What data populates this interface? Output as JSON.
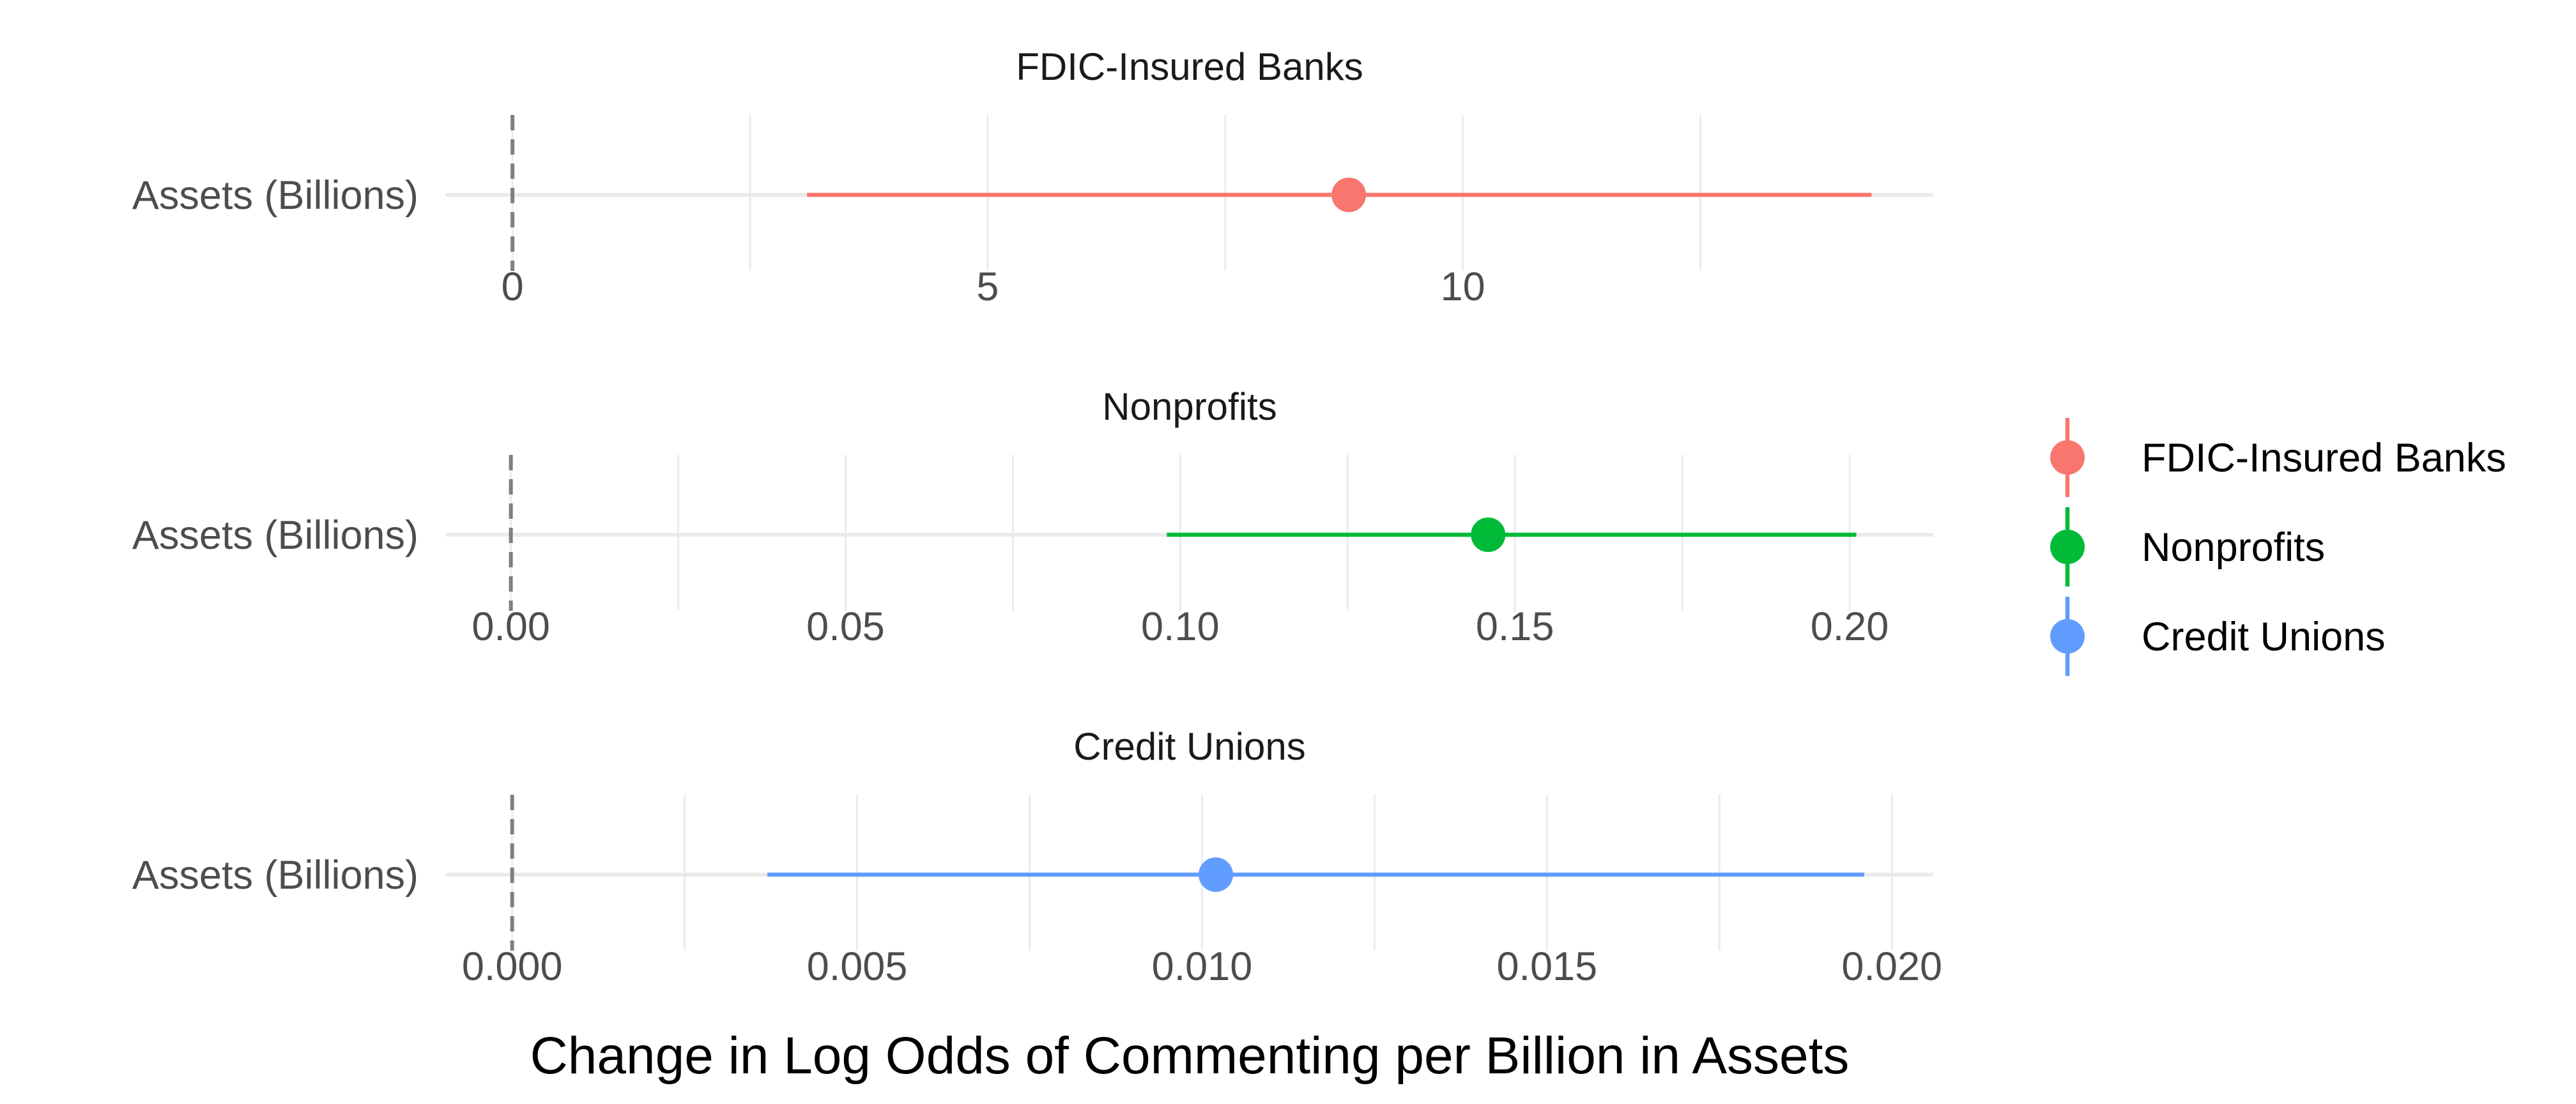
{
  "chart_data": {
    "type": "scatter",
    "style": "point-range (coefficient with confidence interval)",
    "xlabel": "Change in Log Odds of Commenting per Billion in Assets",
    "reference_line": {
      "x": 0,
      "style": "dashed",
      "color": "#7f7f7f"
    },
    "grid": true,
    "legend": {
      "position": "right",
      "entries": [
        {
          "label": "FDIC-Insured Banks",
          "color": "#F8766D"
        },
        {
          "label": "Nonprofits",
          "color": "#00BA38"
        },
        {
          "label": "Credit Unions",
          "color": "#619CFF"
        }
      ]
    },
    "panels": [
      {
        "title": "FDIC-Insured Banks",
        "category": "Assets (Billions)",
        "color": "#F8766D",
        "estimate": 8.8,
        "ci_low": 3.1,
        "ci_high": 14.3,
        "xlim": [
          -0.7,
          14.95
        ],
        "ticks": [
          0,
          5,
          10
        ],
        "tick_labels": [
          "0",
          "5",
          "10"
        ],
        "minor_grid": [
          2.5,
          7.5,
          12.5
        ]
      },
      {
        "title": "Nonprofits",
        "category": "Assets (Billions)",
        "color": "#00BA38",
        "estimate": 0.146,
        "ci_low": 0.098,
        "ci_high": 0.201,
        "xlim": [
          -0.0097,
          0.2125
        ],
        "ticks": [
          0.0,
          0.05,
          0.1,
          0.15,
          0.2
        ],
        "tick_labels": [
          "0.00",
          "0.05",
          "0.10",
          "0.15",
          "0.20"
        ],
        "minor_grid": [
          0.025,
          0.075,
          0.125,
          0.175
        ]
      },
      {
        "title": "Credit Unions",
        "category": "Assets (Billions)",
        "color": "#619CFF",
        "estimate": 0.0102,
        "ci_low": 0.0037,
        "ci_high": 0.0196,
        "xlim": [
          -0.00096,
          0.0206
        ],
        "ticks": [
          0.0,
          0.005,
          0.01,
          0.015,
          0.02
        ],
        "tick_labels": [
          "0.000",
          "0.005",
          "0.010",
          "0.015",
          "0.020"
        ],
        "minor_grid": [
          0.0025,
          0.0075,
          0.0125,
          0.0175
        ]
      }
    ]
  }
}
